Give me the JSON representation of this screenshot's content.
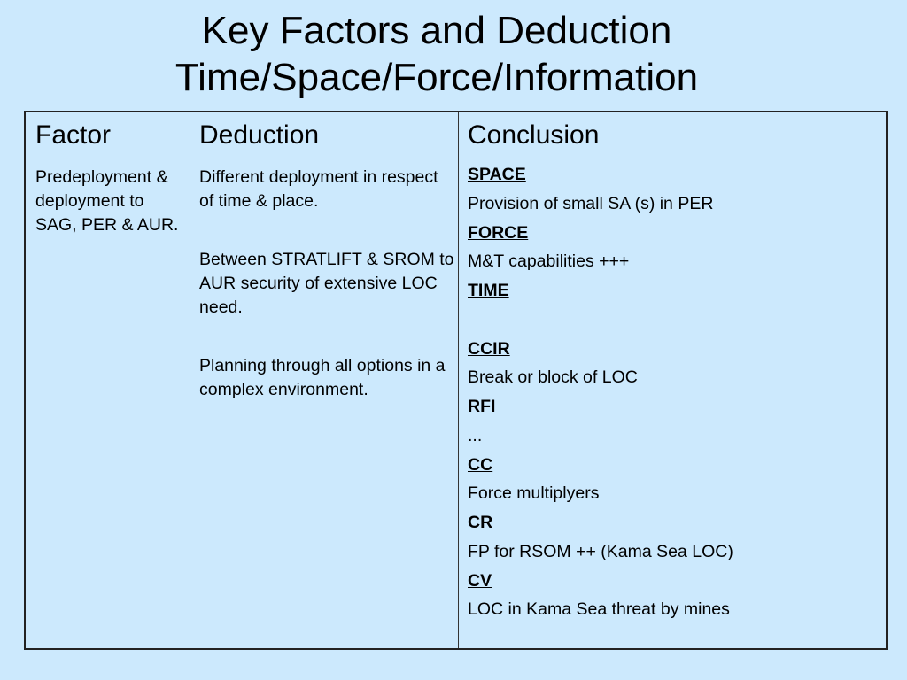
{
  "title": {
    "line1": "Key Factors and Deduction",
    "line2": "Time/Space/Force/Information"
  },
  "table": {
    "headers": [
      "Factor",
      "Deduction",
      "Conclusion"
    ],
    "factor": "Predeployment & deployment to SAG, PER & AUR.",
    "deduction": [
      "Different deployment in respect of time & place.",
      "Between STRATLIFT & SROM to AUR security of extensive LOC need.",
      "Planning through all options in a complex environment."
    ],
    "conclusion": [
      {
        "heading": "SPACE",
        "text": "Provision of small SA (s) in PER"
      },
      {
        "heading": "FORCE",
        "text": "M&T capabilities +++"
      },
      {
        "heading": "TIME",
        "text": ""
      },
      {
        "heading": "CCIR",
        "text": "Break or block of LOC"
      },
      {
        "heading": "RFI",
        "text": "..."
      },
      {
        "heading": "CC",
        "text": "Force multiplyers"
      },
      {
        "heading": "CR",
        "text": "FP for RSOM ++ (Kama Sea LOC)"
      },
      {
        "heading": "CV",
        "text": "LOC  in Kama Sea threat by mines"
      }
    ]
  }
}
